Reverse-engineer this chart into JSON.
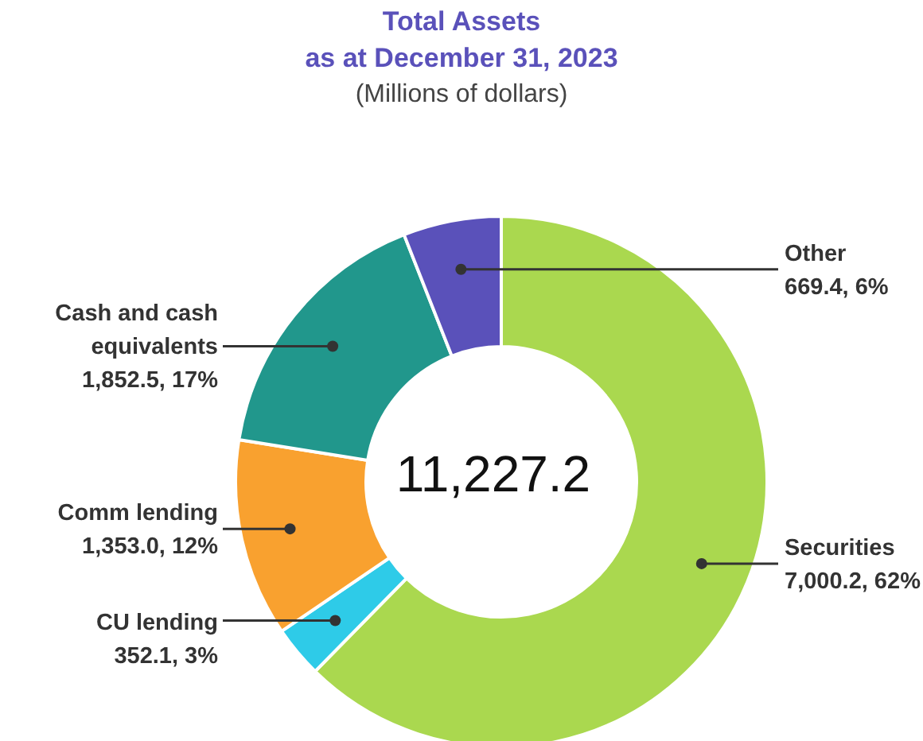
{
  "chart_data": {
    "type": "donut",
    "title": "Total Assets\nas at December 31, 2023",
    "subtitle": "(Millions of dollars)",
    "categories": [
      "Securities",
      "CU lending",
      "Comm lending",
      "Cash and cash equivalents",
      "Other"
    ],
    "values": [
      7000.2,
      352.1,
      1353.0,
      1852.5,
      669.4
    ],
    "value_labels": [
      "7,000.2,  62%",
      "352.1,  3%",
      "1,353.0,  12%",
      "1,852.5,  17%",
      "669.4,  6%"
    ],
    "colors": [
      "#aad84f",
      "#2ecbe8",
      "#f9a12f",
      "#21978c",
      "#5a51ba"
    ],
    "annotations": [
      "11,227.2"
    ],
    "legend": false
  }
}
